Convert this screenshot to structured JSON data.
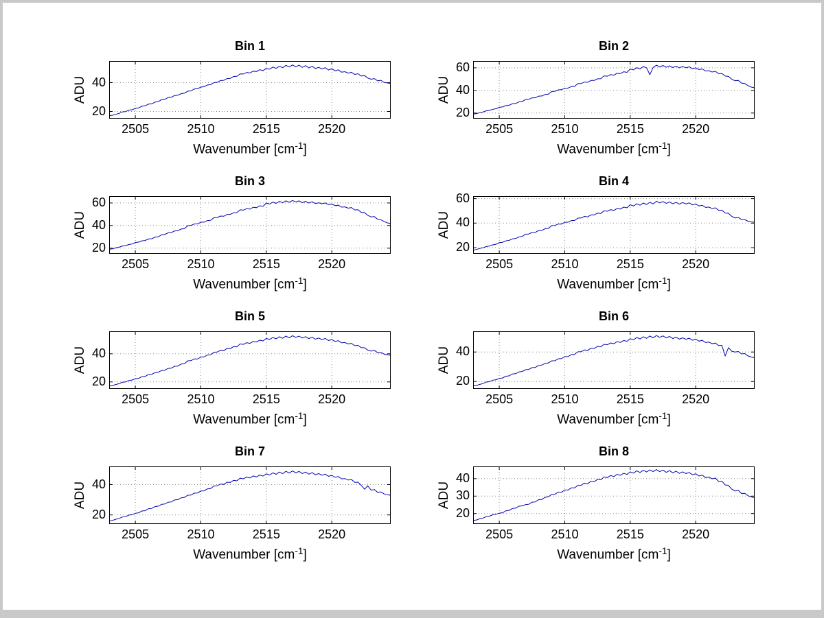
{
  "figure": {
    "background": "#ffffff",
    "frame_color": "#c9c9c9",
    "line_color": "#0000AE",
    "grid_color": "#858585",
    "axis_color": "#000000",
    "text_color": "#000000"
  },
  "chart_data": [
    {
      "type": "line",
      "title": "Bin 1",
      "ylabel": "ADU",
      "xlabel": {
        "pre": "Wavenumber [cm",
        "sup": "-1",
        "post": "]"
      },
      "xlim": [
        2503,
        2524.5
      ],
      "ylim": [
        15,
        55
      ],
      "xticks": [
        2505,
        2510,
        2515,
        2520
      ],
      "yticks": [
        20,
        40
      ],
      "grid": true,
      "x_start": 2503,
      "x_step": 0.25,
      "values": [
        17.0,
        17.4,
        18.0,
        18.6,
        19.7,
        19.9,
        20.9,
        21.2,
        22.1,
        22.5,
        23.6,
        23.9,
        25.1,
        25.3,
        26.5,
        26.8,
        28.2,
        28.4,
        29.7,
        29.9,
        31.1,
        31.3,
        32.4,
        32.7,
        34.1,
        34.3,
        35.6,
        35.8,
        36.9,
        37.2,
        38.4,
        38.6,
        40.0,
        40.2,
        41.5,
        41.6,
        42.8,
        43.0,
        44.3,
        44.4,
        46.1,
        46.0,
        47.1,
        46.7,
        48.0,
        47.7,
        49.0,
        48.4,
        49.9,
        49.4,
        50.8,
        49.9,
        51.4,
        50.4,
        52.0,
        50.9,
        52.3,
        51.0,
        52.1,
        50.6,
        51.8,
        50.2,
        51.4,
        49.8,
        50.6,
        49.5,
        50.4,
        48.8,
        49.7,
        48.2,
        48.9,
        47.3,
        47.6,
        46.6,
        47.2,
        45.7,
        46.2,
        44.6,
        44.9,
        43.2,
        42.4,
        42.8,
        41.3,
        41.6,
        40.1,
        39.8,
        39.2
      ]
    },
    {
      "type": "line",
      "title": "Bin 2",
      "ylabel": "ADU",
      "xlabel": {
        "pre": "Wavenumber [cm",
        "sup": "-1",
        "post": "]"
      },
      "xlim": [
        2503,
        2524.5
      ],
      "ylim": [
        15,
        66
      ],
      "xticks": [
        2505,
        2510,
        2515,
        2520
      ],
      "yticks": [
        20,
        40,
        60
      ],
      "grid": true,
      "x_start": 2503,
      "x_step": 0.25,
      "values": [
        19.0,
        19.5,
        20.3,
        20.9,
        21.9,
        22.3,
        23.3,
        23.8,
        25.1,
        25.4,
        26.6,
        26.9,
        28.2,
        28.4,
        29.8,
        30.1,
        32.0,
        32.1,
        33.4,
        33.5,
        34.9,
        35.1,
        36.4,
        36.7,
        39.0,
        39.2,
        40.5,
        40.6,
        41.9,
        42.1,
        43.4,
        43.6,
        46.0,
        46.1,
        47.4,
        47.2,
        48.8,
        48.9,
        50.3,
        50.4,
        52.9,
        52.6,
        54.0,
        53.5,
        55.2,
        54.8,
        56.5,
        56.0,
        58.9,
        58.2,
        60.1,
        59.0,
        61.2,
        59.9,
        53.9,
        60.4,
        62.3,
        60.9,
        62.0,
        60.6,
        61.8,
        60.3,
        61.5,
        60.0,
        61.2,
        60.0,
        60.9,
        59.2,
        60.0,
        58.4,
        59.0,
        57.2,
        57.5,
        56.3,
        56.9,
        54.8,
        55.0,
        52.7,
        52.4,
        50.0,
        48.6,
        48.9,
        46.5,
        46.0,
        44.2,
        42.9,
        42.3
      ]
    },
    {
      "type": "line",
      "title": "Bin 3",
      "ylabel": "ADU",
      "xlabel": {
        "pre": "Wavenumber [cm",
        "sup": "-1",
        "post": "]"
      },
      "xlim": [
        2503,
        2524.5
      ],
      "ylim": [
        15,
        66
      ],
      "xticks": [
        2505,
        2510,
        2515,
        2520
      ],
      "yticks": [
        20,
        40,
        60
      ],
      "grid": true,
      "x_start": 2503,
      "x_step": 0.25,
      "values": [
        19.0,
        19.4,
        20.2,
        20.8,
        21.8,
        22.2,
        23.2,
        23.7,
        25.0,
        25.3,
        26.5,
        26.8,
        28.1,
        28.3,
        29.7,
        30.0,
        31.9,
        32.2,
        33.5,
        33.8,
        35.2,
        35.5,
        36.9,
        37.2,
        39.9,
        40.1,
        41.4,
        41.5,
        42.9,
        43.0,
        44.4,
        44.6,
        47.0,
        47.1,
        48.4,
        48.2,
        49.8,
        49.9,
        51.3,
        51.4,
        53.9,
        53.6,
        55.0,
        54.5,
        56.2,
        55.8,
        57.5,
        57.0,
        59.9,
        59.0,
        60.8,
        59.7,
        61.4,
        60.2,
        61.9,
        60.6,
        62.2,
        60.9,
        61.8,
        60.3,
        61.4,
        59.9,
        61.0,
        59.5,
        60.2,
        59.3,
        60.0,
        58.5,
        59.1,
        57.6,
        58.0,
        56.3,
        56.5,
        55.4,
        55.9,
        53.8,
        54.0,
        51.7,
        51.4,
        49.0,
        47.6,
        47.9,
        45.6,
        45.2,
        43.5,
        42.3,
        41.9
      ]
    },
    {
      "type": "line",
      "title": "Bin 4",
      "ylabel": "ADU",
      "xlabel": {
        "pre": "Wavenumber [cm",
        "sup": "-1",
        "post": "]"
      },
      "xlim": [
        2503,
        2524.5
      ],
      "ylim": [
        15,
        62
      ],
      "xticks": [
        2505,
        2510,
        2515,
        2520
      ],
      "yticks": [
        20,
        40,
        60
      ],
      "grid": true,
      "x_start": 2503,
      "x_step": 0.25,
      "values": [
        18.0,
        18.5,
        19.3,
        19.9,
        20.9,
        21.3,
        22.3,
        22.8,
        24.1,
        24.4,
        25.6,
        25.9,
        27.2,
        27.4,
        28.8,
        29.1,
        31.0,
        31.1,
        32.4,
        32.5,
        33.9,
        34.1,
        35.4,
        35.7,
        38.0,
        38.1,
        39.3,
        39.2,
        40.7,
        40.8,
        42.1,
        42.2,
        44.1,
        44.2,
        45.5,
        45.1,
        46.8,
        46.7,
        48.2,
        47.9,
        50.1,
        49.7,
        51.0,
        50.4,
        52.0,
        51.5,
        53.1,
        52.5,
        55.0,
        54.0,
        55.8,
        54.6,
        56.4,
        55.2,
        57.0,
        55.7,
        57.9,
        56.5,
        57.6,
        56.1,
        57.3,
        55.8,
        57.0,
        55.5,
        56.8,
        55.7,
        56.5,
        54.9,
        55.6,
        54.0,
        54.6,
        52.8,
        53.1,
        52.0,
        52.5,
        50.4,
        50.6,
        48.3,
        48.0,
        45.6,
        44.2,
        44.6,
        42.9,
        42.8,
        41.6,
        41.0,
        40.8
      ]
    },
    {
      "type": "line",
      "title": "Bin 5",
      "ylabel": "ADU",
      "xlabel": {
        "pre": "Wavenumber [cm",
        "sup": "-1",
        "post": "]"
      },
      "xlim": [
        2503,
        2524.5
      ],
      "ylim": [
        15,
        56
      ],
      "xticks": [
        2505,
        2510,
        2515,
        2520
      ],
      "yticks": [
        20,
        40
      ],
      "grid": true,
      "x_start": 2503,
      "x_step": 0.25,
      "values": [
        17.0,
        17.4,
        18.1,
        18.7,
        19.7,
        20.0,
        21.0,
        21.3,
        22.2,
        22.5,
        23.7,
        23.9,
        25.2,
        25.4,
        26.6,
        26.9,
        28.1,
        28.3,
        29.6,
        29.8,
        31.1,
        31.3,
        32.7,
        32.9,
        35.0,
        35.1,
        36.4,
        36.3,
        37.7,
        37.8,
        39.1,
        39.2,
        41.1,
        41.2,
        42.5,
        42.2,
        43.8,
        43.7,
        45.1,
        44.9,
        47.0,
        46.7,
        47.9,
        47.4,
        48.8,
        48.4,
        49.7,
        49.1,
        50.9,
        50.2,
        51.6,
        50.7,
        52.1,
        51.0,
        52.6,
        51.3,
        52.9,
        51.7,
        52.6,
        51.2,
        52.2,
        50.8,
        51.8,
        50.4,
        51.2,
        50.1,
        50.9,
        49.4,
        50.1,
        48.8,
        49.3,
        47.8,
        48.0,
        47.0,
        47.4,
        45.8,
        46.0,
        44.4,
        44.3,
        42.6,
        41.9,
        42.4,
        40.8,
        41.0,
        39.7,
        39.3,
        38.9
      ]
    },
    {
      "type": "line",
      "title": "Bin 6",
      "ylabel": "ADU",
      "xlabel": {
        "pre": "Wavenumber [cm",
        "sup": "-1",
        "post": "]"
      },
      "xlim": [
        2503,
        2524.5
      ],
      "ylim": [
        15,
        54
      ],
      "xticks": [
        2505,
        2510,
        2515,
        2520
      ],
      "yticks": [
        20,
        40
      ],
      "grid": true,
      "x_start": 2503,
      "x_step": 0.25,
      "values": [
        17.0,
        17.3,
        18.0,
        18.6,
        19.6,
        19.9,
        20.9,
        21.2,
        22.1,
        22.4,
        23.6,
        23.8,
        25.1,
        25.3,
        26.5,
        26.8,
        28.0,
        28.2,
        29.4,
        29.6,
        30.9,
        31.1,
        32.3,
        32.6,
        34.0,
        34.1,
        35.4,
        35.5,
        36.8,
        36.9,
        38.2,
        38.4,
        40.1,
        40.2,
        41.4,
        41.1,
        42.6,
        42.4,
        43.8,
        43.5,
        45.2,
        44.9,
        46.1,
        45.6,
        47.0,
        46.5,
        47.8,
        47.2,
        49.0,
        48.2,
        49.8,
        48.8,
        50.3,
        49.2,
        50.8,
        49.6,
        51.1,
        49.9,
        50.9,
        49.5,
        50.5,
        49.1,
        50.1,
        48.7,
        49.6,
        48.6,
        49.3,
        47.9,
        48.6,
        47.3,
        47.9,
        46.4,
        46.7,
        45.6,
        46.0,
        44.3,
        44.5,
        37.4,
        42.9,
        40.5,
        40.0,
        40.3,
        38.7,
        38.9,
        37.3,
        36.6,
        36.1
      ]
    },
    {
      "type": "line",
      "title": "Bin 7",
      "ylabel": "ADU",
      "xlabel": {
        "pre": "Wavenumber [cm",
        "sup": "-1",
        "post": "]"
      },
      "xlim": [
        2503,
        2524.5
      ],
      "ylim": [
        14,
        52
      ],
      "xticks": [
        2505,
        2510,
        2515,
        2520
      ],
      "yticks": [
        20,
        40
      ],
      "grid": true,
      "x_start": 2503,
      "x_step": 0.25,
      "values": [
        16.0,
        16.4,
        17.1,
        17.7,
        18.6,
        18.9,
        19.9,
        20.2,
        21.1,
        21.4,
        22.6,
        22.8,
        24.1,
        24.3,
        25.5,
        25.8,
        27.0,
        27.2,
        28.4,
        28.6,
        29.9,
        30.1,
        31.3,
        31.6,
        33.0,
        33.1,
        34.4,
        34.5,
        35.8,
        35.9,
        37.2,
        37.4,
        39.1,
        39.2,
        40.4,
        40.1,
        41.6,
        41.4,
        42.8,
        42.5,
        44.2,
        43.8,
        45.0,
        44.4,
        45.7,
        45.1,
        46.3,
        45.6,
        47.1,
        46.3,
        47.8,
        46.8,
        48.3,
        47.2,
        48.8,
        47.6,
        49.0,
        47.8,
        48.7,
        47.3,
        48.3,
        46.9,
        47.9,
        46.5,
        47.3,
        46.2,
        46.9,
        45.5,
        46.1,
        44.8,
        45.3,
        43.8,
        44.0,
        43.0,
        43.4,
        41.5,
        41.6,
        39.5,
        37.0,
        39.2,
        36.4,
        36.7,
        34.9,
        35.2,
        33.8,
        33.3,
        32.9
      ]
    },
    {
      "type": "line",
      "title": "Bin 8",
      "ylabel": "ADU",
      "xlabel": {
        "pre": "Wavenumber [cm",
        "sup": "-1",
        "post": "]"
      },
      "xlim": [
        2503,
        2524.5
      ],
      "ylim": [
        14,
        47
      ],
      "xticks": [
        2505,
        2510,
        2515,
        2520
      ],
      "yticks": [
        20,
        30,
        40
      ],
      "grid": true,
      "x_start": 2503,
      "x_step": 0.25,
      "values": [
        16.0,
        16.3,
        17.0,
        17.4,
        18.2,
        18.5,
        19.3,
        19.6,
        20.2,
        20.5,
        21.6,
        21.8,
        22.9,
        23.1,
        24.2,
        24.4,
        25.1,
        25.3,
        26.5,
        26.7,
        27.9,
        28.1,
        29.3,
        29.6,
        31.0,
        31.1,
        32.3,
        32.2,
        33.5,
        33.5,
        34.7,
        34.7,
        36.1,
        36.2,
        37.4,
        37.1,
        38.5,
        38.2,
        39.6,
        39.3,
        41.0,
        40.6,
        41.8,
        41.2,
        42.5,
        41.9,
        43.1,
        42.4,
        43.9,
        43.2,
        44.5,
        43.5,
        44.8,
        43.8,
        45.0,
        44.0,
        45.2,
        44.0,
        44.9,
        43.6,
        44.6,
        43.3,
        44.3,
        43.0,
        43.9,
        42.9,
        43.5,
        42.2,
        42.8,
        41.5,
        42.0,
        40.6,
        40.9,
        39.9,
        40.3,
        38.4,
        38.5,
        36.4,
        36.1,
        34.0,
        32.9,
        33.3,
        31.5,
        31.6,
        30.2,
        29.5,
        29.1
      ]
    }
  ]
}
